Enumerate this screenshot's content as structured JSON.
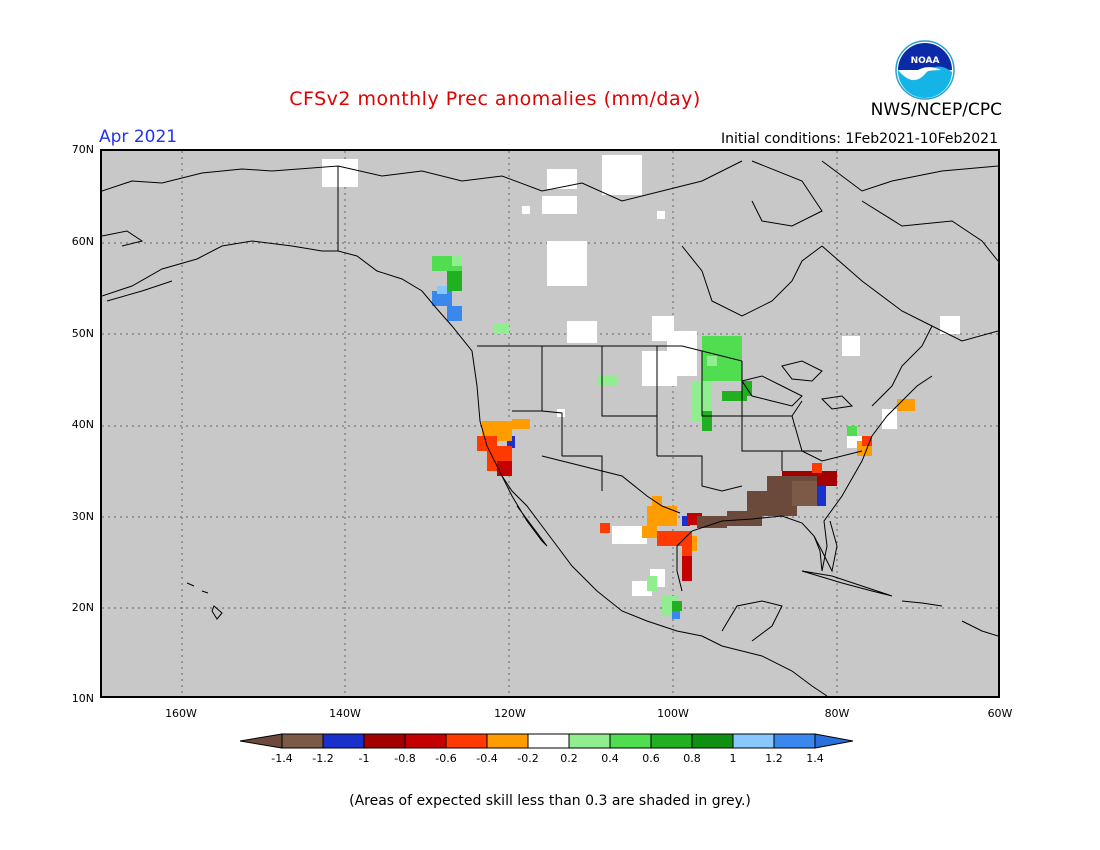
{
  "header": {
    "title": "CFSv2 monthly Prec anomalies (mm/day)",
    "agency": "NWS/NCEP/CPC",
    "month": "Apr 2021",
    "initial_conditions": "Initial conditions: 1Feb2021-10Feb2021",
    "logo_text": "NOAA"
  },
  "axes": {
    "lat_labels": [
      "70N",
      "60N",
      "50N",
      "40N",
      "30N",
      "20N",
      "10N"
    ],
    "lon_labels": [
      "160W",
      "140W",
      "120W",
      "100W",
      "80W",
      "60W"
    ]
  },
  "legend": {
    "labels": [
      "-1.4",
      "-1.2",
      "-1",
      "-0.8",
      "-0.6",
      "-0.4",
      "-0.2",
      "0.2",
      "0.4",
      "0.6",
      "0.8",
      "1",
      "1.2",
      "1.4"
    ],
    "colors": [
      "#6b4a3c",
      "#7d5a48",
      "#1a30cc",
      "#a30000",
      "#c40000",
      "#ff3a00",
      "#ff9c00",
      "#ffffff",
      "#90ee90",
      "#50dd50",
      "#20b020",
      "#109010",
      "#88c8ff",
      "#3a88ee",
      "#2a70dd"
    ]
  },
  "footnote": "(Areas of expected skill less than 0.3 are shaded in grey.)",
  "colors": {
    "background_map": "#c8c8c8",
    "title": "#e00000",
    "month": "#2233ee"
  }
}
